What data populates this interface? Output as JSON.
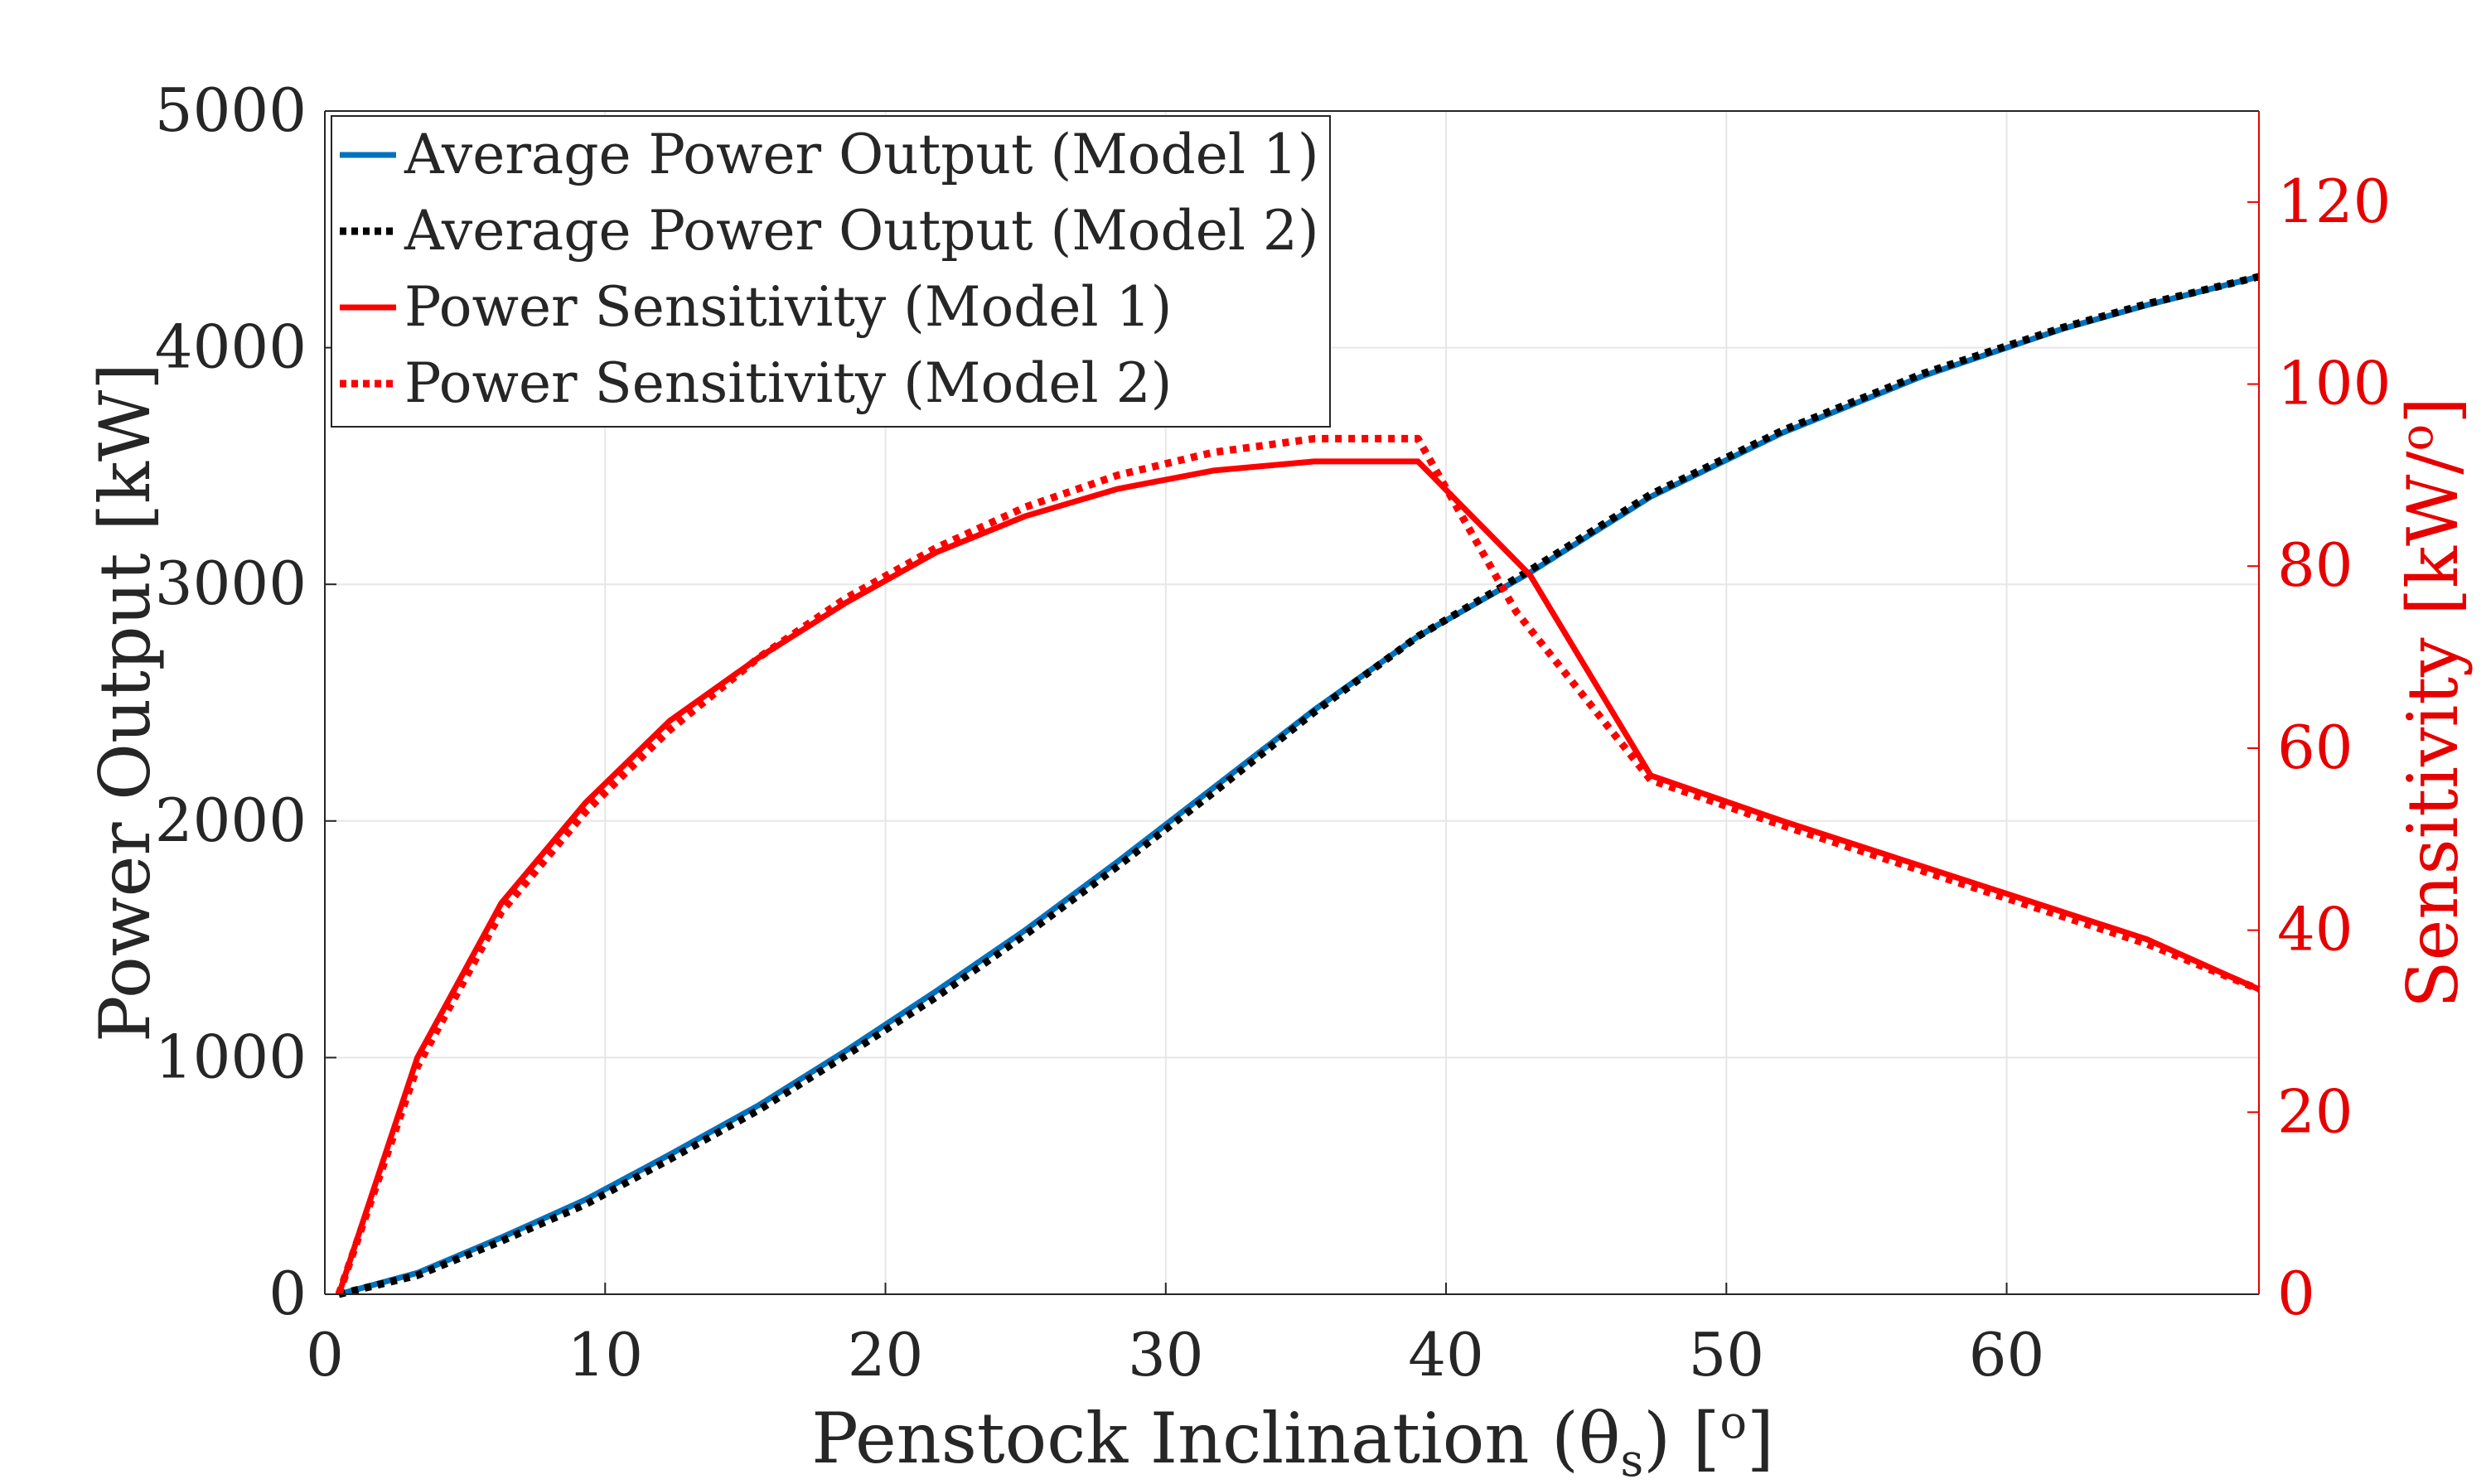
{
  "chart_data": {
    "type": "line",
    "title": "",
    "xlabel": "Penstock Inclination (θ",
    "xlabel_sub": "s",
    "xlabel_suffix": ") [",
    "xlabel_unit_sup": "o",
    "xlabel_end": "]",
    "ylabel_left": "Power Output [kW]",
    "ylabel_right": "Sensitivity [kW/",
    "ylabel_right_sup": "o",
    "ylabel_right_end": "]",
    "xlim": [
      0,
      69
    ],
    "ylim_left": [
      0,
      5000
    ],
    "ylim_right": [
      0,
      130
    ],
    "xticks": [
      0,
      10,
      20,
      30,
      40,
      50,
      60
    ],
    "yticks_left": [
      0,
      1000,
      2000,
      3000,
      4000,
      5000
    ],
    "yticks_right": [
      0,
      20,
      40,
      60,
      80,
      100,
      120
    ],
    "grid": true,
    "legend_position": "top-left",
    "colors": {
      "model1_power": "#0072bd",
      "model2_power": "#000000",
      "sensitivity": "#ff0000",
      "right_axis": "#e60000",
      "grid": "#e6e6e6"
    },
    "series": [
      {
        "name": "Average Power Output (Model 1)",
        "axis": "left",
        "style": "solid",
        "color": "#0072bd",
        "x": [
          0.5,
          3.3,
          6.3,
          9.3,
          12.3,
          15.5,
          18.6,
          21.8,
          25.0,
          28.3,
          31.7,
          35.3,
          39.0,
          43.0,
          47.3,
          52.0,
          57.0,
          62.0,
          65.0,
          69.0
        ],
        "y": [
          0,
          90,
          240,
          400,
          590,
          800,
          1030,
          1280,
          1540,
          1830,
          2140,
          2470,
          2780,
          3050,
          3370,
          3640,
          3880,
          4080,
          4180,
          4300
        ]
      },
      {
        "name": "Average Power Output (Model 2)",
        "axis": "left",
        "style": "dotted",
        "color": "#000000",
        "x": [
          0.5,
          3.3,
          6.3,
          9.3,
          12.3,
          15.5,
          18.6,
          21.8,
          25.0,
          28.3,
          31.7,
          35.3,
          39.0,
          43.0,
          47.3,
          52.0,
          57.0,
          62.0,
          65.0,
          69.0
        ],
        "y": [
          0,
          80,
          225,
          380,
          570,
          780,
          1010,
          1255,
          1520,
          1810,
          2120,
          2460,
          2780,
          3060,
          3380,
          3650,
          3890,
          4085,
          4185,
          4300
        ]
      },
      {
        "name": "Power Sensitivity (Model 1)",
        "axis": "right",
        "style": "solid",
        "color": "#ff0000",
        "x": [
          0.5,
          3.3,
          6.3,
          9.3,
          12.3,
          15.5,
          18.6,
          21.8,
          25.0,
          28.3,
          31.7,
          35.3,
          39.0,
          43.0,
          47.3,
          52.0,
          57.0,
          62.0,
          65.0,
          69.0
        ],
        "y": [
          0,
          26,
          43,
          54,
          63,
          70,
          76,
          81.5,
          85.5,
          88.5,
          90.5,
          91.5,
          91.5,
          79,
          57,
          52,
          47,
          42,
          39,
          33.5
        ]
      },
      {
        "name": "Power Sensitivity (Model 2)",
        "axis": "right",
        "style": "dotted",
        "color": "#ff0000",
        "x": [
          0.5,
          3.3,
          6.3,
          9.3,
          12.3,
          15.5,
          18.6,
          21.8,
          25.0,
          28.3,
          31.7,
          35.3,
          39.0,
          42.5,
          47.3,
          52.0,
          57.0,
          62.0,
          65.0,
          69.0
        ],
        "y": [
          0,
          25,
          42,
          53,
          62,
          70,
          76.5,
          82,
          86.5,
          90,
          92.5,
          94,
          94,
          75,
          56.5,
          51.5,
          46.5,
          41.5,
          38.5,
          33.5
        ]
      }
    ]
  }
}
